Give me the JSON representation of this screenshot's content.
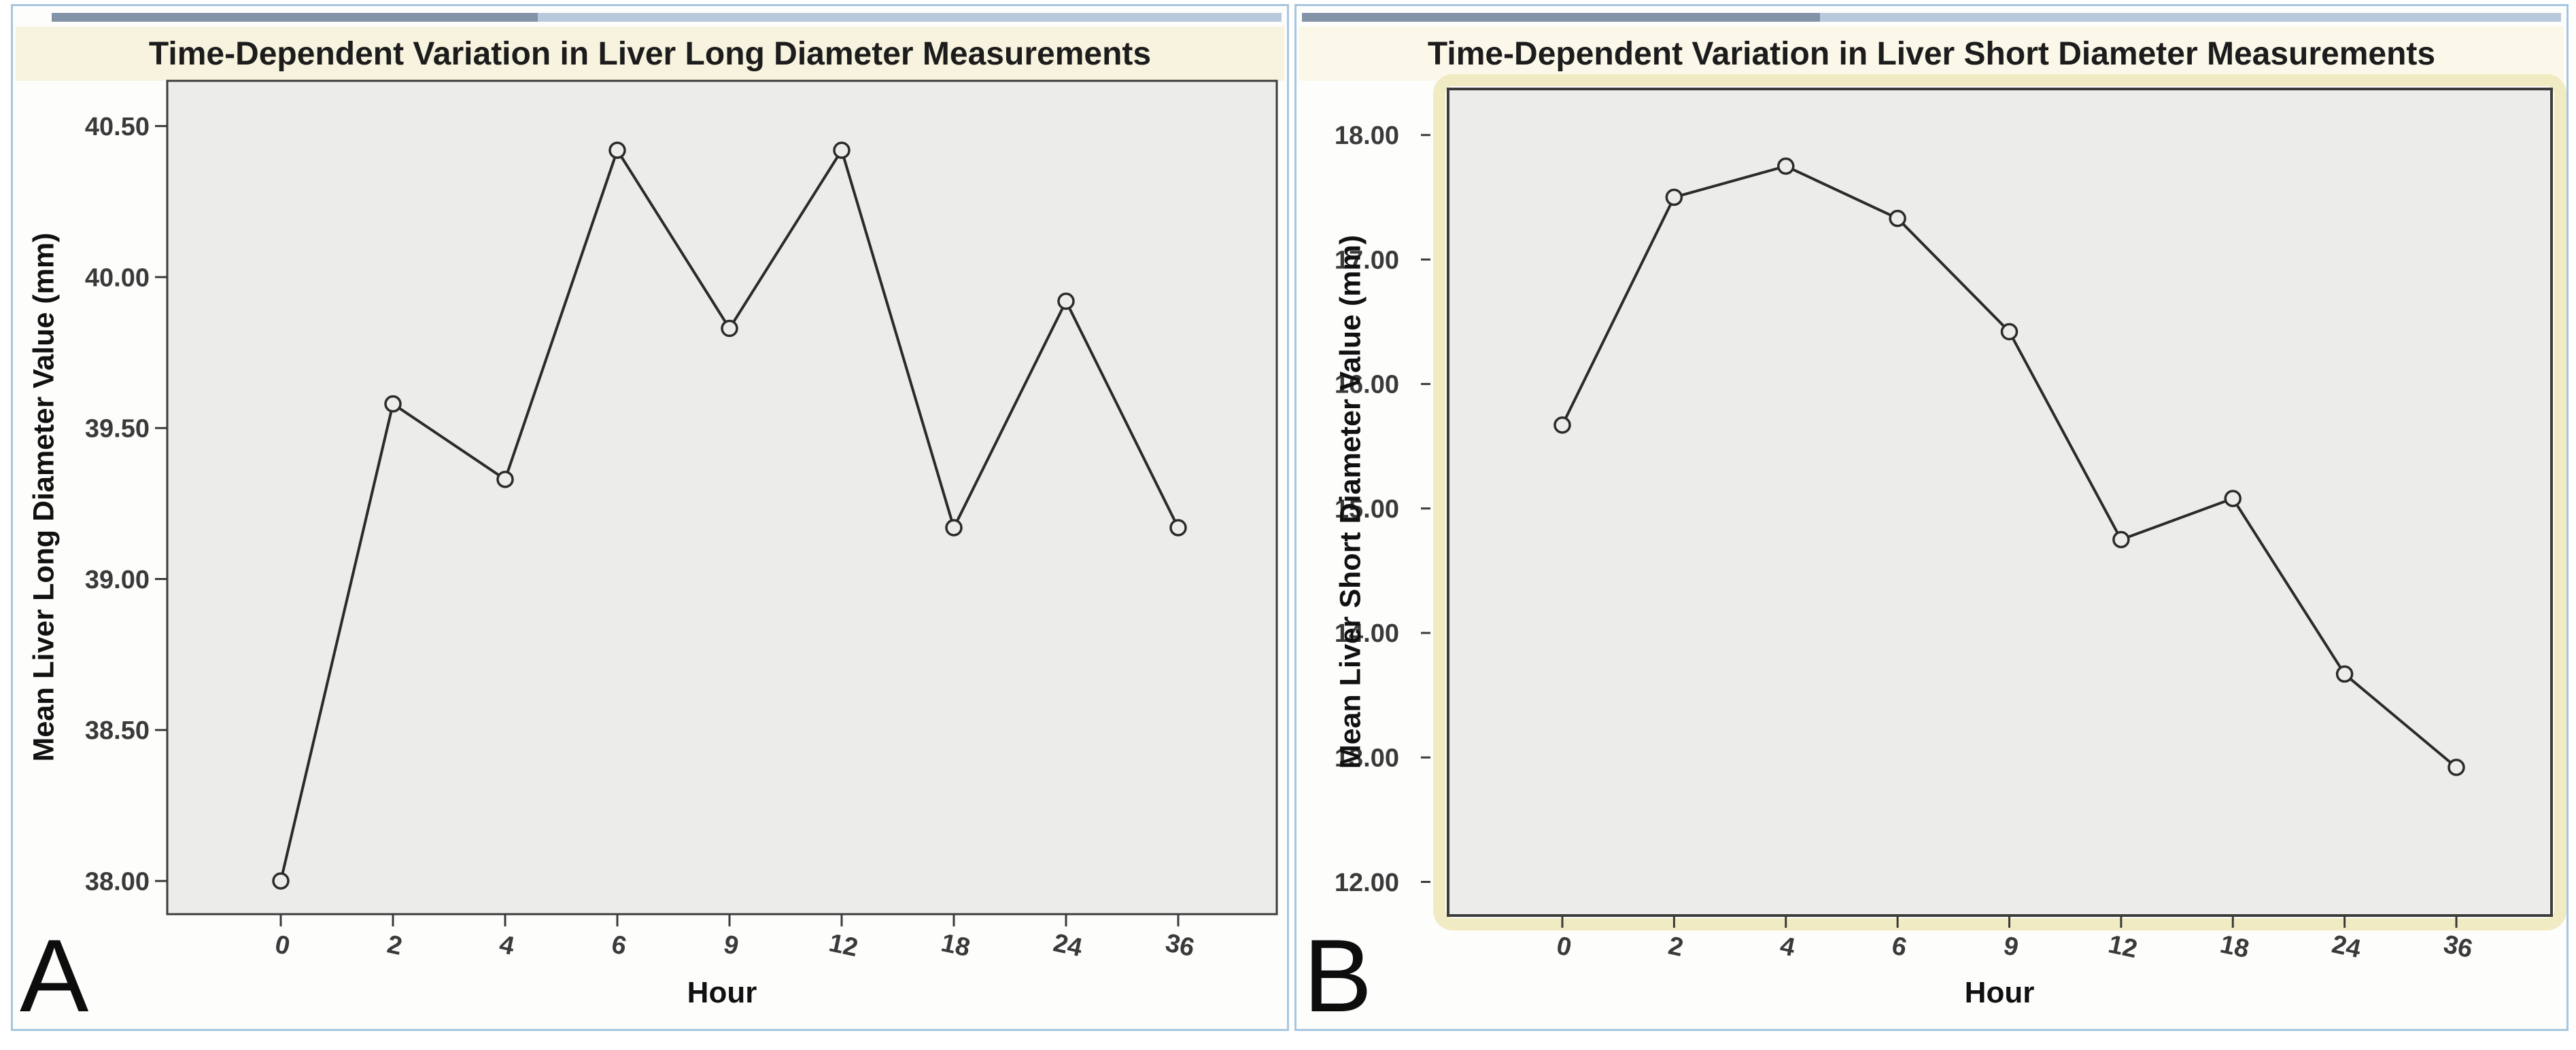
{
  "colors": {
    "page_bg": "#ffffff",
    "panel_border": "#a5c6e0",
    "topbar_dark": "#8293a8",
    "topbar_light": "#b7c9da",
    "title_band_a": "#f7f3de",
    "title_band_b": "#fbf8ea",
    "plot_bg": "#ececea",
    "plot_frame": "#3c3c3c",
    "line": "#2b2b2b",
    "text": "#1c1c1c",
    "tick_text": "#3a3a3a",
    "cream_border": "#f1ebc3"
  },
  "chart_data": [
    {
      "type": "line",
      "panel_label": "A",
      "title": "Time-Dependent Variation in Liver Long Diameter Measurements",
      "xlabel": "Hour",
      "ylabel": "Mean Liver Long Diameter Value (mm)",
      "categories": [
        "0",
        "2",
        "4",
        "6",
        "9",
        "12",
        "18",
        "24",
        "36"
      ],
      "values": [
        38.0,
        39.58,
        39.33,
        40.42,
        39.83,
        40.42,
        39.17,
        39.92,
        39.17
      ],
      "ylim": [
        37.89,
        40.65
      ],
      "yticks": [
        38.0,
        38.5,
        39.0,
        39.5,
        40.0,
        40.5
      ],
      "ytick_labels": [
        "38.00",
        "38.50",
        "39.00",
        "39.50",
        "40.00",
        "40.50"
      ],
      "marker": "open-circle",
      "grid": false,
      "legend": "none"
    },
    {
      "type": "line",
      "panel_label": "B",
      "title": "Time-Dependent Variation in Liver Short Diameter Measurements",
      "xlabel": "Hour",
      "ylabel": "Mean Liver Short Diameter Value (mm)",
      "categories": [
        "0",
        "2",
        "4",
        "6",
        "9",
        "12",
        "18",
        "24",
        "36"
      ],
      "values": [
        15.67,
        17.5,
        17.75,
        17.33,
        16.42,
        14.75,
        15.08,
        13.67,
        12.92
      ],
      "ylim": [
        11.73,
        18.37
      ],
      "yticks": [
        12.0,
        13.0,
        14.0,
        15.0,
        16.0,
        17.0,
        18.0
      ],
      "ytick_labels": [
        "12.00",
        "13.00",
        "14.00",
        "15.00",
        "16.00",
        "17.00",
        "18.00"
      ],
      "marker": "open-circle",
      "grid": false,
      "legend": "none"
    }
  ]
}
